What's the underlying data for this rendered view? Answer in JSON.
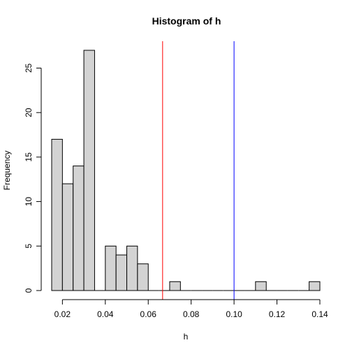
{
  "chart_data": {
    "type": "bar",
    "title": "Histogram of h",
    "xlabel": "h",
    "ylabel": "Frequency",
    "bin_width": 0.005,
    "bins": [
      {
        "start": 0.015,
        "end": 0.02,
        "count": 17
      },
      {
        "start": 0.02,
        "end": 0.025,
        "count": 12
      },
      {
        "start": 0.025,
        "end": 0.03,
        "count": 14
      },
      {
        "start": 0.03,
        "end": 0.035,
        "count": 27
      },
      {
        "start": 0.035,
        "end": 0.04,
        "count": 0
      },
      {
        "start": 0.04,
        "end": 0.045,
        "count": 5
      },
      {
        "start": 0.045,
        "end": 0.05,
        "count": 4
      },
      {
        "start": 0.05,
        "end": 0.055,
        "count": 5
      },
      {
        "start": 0.055,
        "end": 0.06,
        "count": 3
      },
      {
        "start": 0.06,
        "end": 0.065,
        "count": 0
      },
      {
        "start": 0.065,
        "end": 0.07,
        "count": 0
      },
      {
        "start": 0.07,
        "end": 0.075,
        "count": 1
      },
      {
        "start": 0.075,
        "end": 0.08,
        "count": 0
      },
      {
        "start": 0.08,
        "end": 0.085,
        "count": 0
      },
      {
        "start": 0.085,
        "end": 0.09,
        "count": 0
      },
      {
        "start": 0.09,
        "end": 0.095,
        "count": 0
      },
      {
        "start": 0.095,
        "end": 0.1,
        "count": 0
      },
      {
        "start": 0.1,
        "end": 0.105,
        "count": 0
      },
      {
        "start": 0.105,
        "end": 0.11,
        "count": 0
      },
      {
        "start": 0.11,
        "end": 0.115,
        "count": 1
      },
      {
        "start": 0.115,
        "end": 0.12,
        "count": 0
      },
      {
        "start": 0.12,
        "end": 0.125,
        "count": 0
      },
      {
        "start": 0.125,
        "end": 0.13,
        "count": 0
      },
      {
        "start": 0.13,
        "end": 0.135,
        "count": 0
      },
      {
        "start": 0.135,
        "end": 0.14,
        "count": 1
      }
    ],
    "xlim": [
      0.015,
      0.14
    ],
    "ylim": [
      0,
      27
    ],
    "x_ticks": [
      0.02,
      0.04,
      0.06,
      0.08,
      0.1,
      0.12,
      0.14
    ],
    "x_tick_labels": [
      "0.02",
      "0.04",
      "0.06",
      "0.08",
      "0.10",
      "0.12",
      "0.14"
    ],
    "y_ticks": [
      0,
      5,
      10,
      15,
      20,
      25
    ],
    "y_tick_labels": [
      "0",
      "5",
      "10",
      "15",
      "20",
      "25"
    ],
    "vlines": [
      {
        "x": 0.0667,
        "color": "#ff0000"
      },
      {
        "x": 0.1,
        "color": "#0000ff"
      }
    ],
    "bar_fill": "#d3d3d3",
    "bar_stroke": "#000000",
    "grid": false
  }
}
